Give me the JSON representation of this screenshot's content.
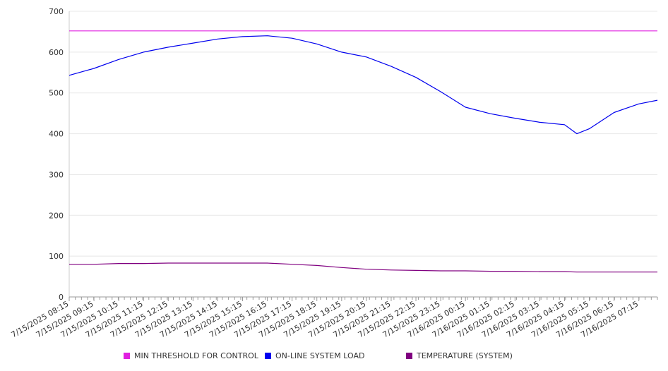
{
  "chart_data": {
    "type": "line",
    "title": "",
    "xlabel": "",
    "ylabel": "",
    "ylim": [
      0,
      700
    ],
    "y_ticks": [
      0,
      100,
      200,
      300,
      400,
      500,
      600,
      700
    ],
    "x_tick_labels": [
      "7/15/2025 08:15",
      "7/15/2025 09:15",
      "7/15/2025 10:15",
      "7/15/2025 11:15",
      "7/15/2025 12:15",
      "7/15/2025 13:15",
      "7/15/2025 14:15",
      "7/15/2025 15:15",
      "7/15/2025 16:15",
      "7/15/2025 17:15",
      "7/15/2025 18:15",
      "7/15/2025 19:15",
      "7/15/2025 20:15",
      "7/15/2025 21:15",
      "7/15/2025 22:15",
      "7/15/2025 23:15",
      "7/16/2025 00:15",
      "7/16/2025 01:15",
      "7/16/2025 02:15",
      "7/16/2025 03:15",
      "7/16/2025 04:15",
      "7/16/2025 05:15",
      "7/16/2025 06:15",
      "7/16/2025 07:15"
    ],
    "grid": true,
    "legend_position": "bottom",
    "x": [
      "7/15/2025 08:15",
      "7/15/2025 09:15",
      "7/15/2025 10:15",
      "7/15/2025 11:15",
      "7/15/2025 12:15",
      "7/15/2025 13:15",
      "7/15/2025 14:15",
      "7/15/2025 15:15",
      "7/15/2025 16:15",
      "7/15/2025 17:15",
      "7/15/2025 18:15",
      "7/15/2025 19:15",
      "7/15/2025 20:15",
      "7/15/2025 21:15",
      "7/15/2025 22:15",
      "7/15/2025 23:15",
      "7/16/2025 00:15",
      "7/16/2025 01:15",
      "7/16/2025 02:15",
      "7/16/2025 03:15",
      "7/16/2025 04:15",
      "7/16/2025 04:45",
      "7/16/2025 05:15",
      "7/16/2025 06:15",
      "7/16/2025 07:15",
      "7/16/2025 08:00"
    ],
    "series": [
      {
        "name": "MIN THRESHOLD FOR CONTROL",
        "color": "#e020e0",
        "values": [
          652,
          652,
          652,
          652,
          652,
          652,
          652,
          652,
          652,
          652,
          652,
          652,
          652,
          652,
          652,
          652,
          652,
          652,
          652,
          652,
          652,
          652,
          652,
          652,
          652,
          652
        ]
      },
      {
        "name": "ON-LINE SYSTEM LOAD",
        "color": "#0000ee",
        "values": [
          543,
          560,
          582,
          600,
          612,
          622,
          632,
          638,
          640,
          634,
          620,
          600,
          588,
          565,
          538,
          503,
          465,
          449,
          438,
          428,
          422,
          400,
          412,
          452,
          473,
          482
        ]
      },
      {
        "name": "TEMPERATURE (SYSTEM)",
        "color": "#800080",
        "values": [
          80,
          80,
          82,
          82,
          83,
          83,
          83,
          83,
          83,
          80,
          77,
          72,
          68,
          66,
          65,
          64,
          64,
          63,
          63,
          62,
          62,
          61,
          61,
          61,
          61,
          61
        ]
      }
    ]
  }
}
